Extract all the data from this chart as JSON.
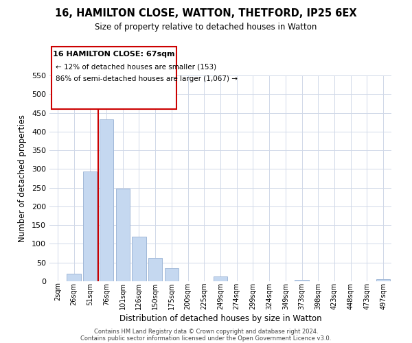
{
  "title": "16, HAMILTON CLOSE, WATTON, THETFORD, IP25 6EX",
  "subtitle": "Size of property relative to detached houses in Watton",
  "xlabel": "Distribution of detached houses by size in Watton",
  "ylabel": "Number of detached properties",
  "bar_labels": [
    "2sqm",
    "26sqm",
    "51sqm",
    "76sqm",
    "101sqm",
    "126sqm",
    "150sqm",
    "175sqm",
    "200sqm",
    "225sqm",
    "249sqm",
    "274sqm",
    "299sqm",
    "324sqm",
    "349sqm",
    "373sqm",
    "398sqm",
    "423sqm",
    "448sqm",
    "473sqm",
    "497sqm"
  ],
  "bar_values": [
    0,
    20,
    293,
    432,
    248,
    120,
    63,
    35,
    0,
    0,
    12,
    0,
    0,
    0,
    0,
    3,
    0,
    0,
    0,
    0,
    5
  ],
  "bar_color": "#c5d8f0",
  "bar_edge_color": "#a0b8d8",
  "ylim": [
    0,
    550
  ],
  "yticks": [
    0,
    50,
    100,
    150,
    200,
    250,
    300,
    350,
    400,
    450,
    500,
    550
  ],
  "vline_color": "#cc0000",
  "annotation_title": "16 HAMILTON CLOSE: 67sqm",
  "annotation_line1": "← 12% of detached houses are smaller (153)",
  "annotation_line2": "86% of semi-detached houses are larger (1,067) →",
  "annotation_box_color": "#ffffff",
  "annotation_box_edge": "#cc0000",
  "footer_line1": "Contains HM Land Registry data © Crown copyright and database right 2024.",
  "footer_line2": "Contains public sector information licensed under the Open Government Licence v3.0.",
  "background_color": "#ffffff",
  "grid_color": "#d0d8e8"
}
